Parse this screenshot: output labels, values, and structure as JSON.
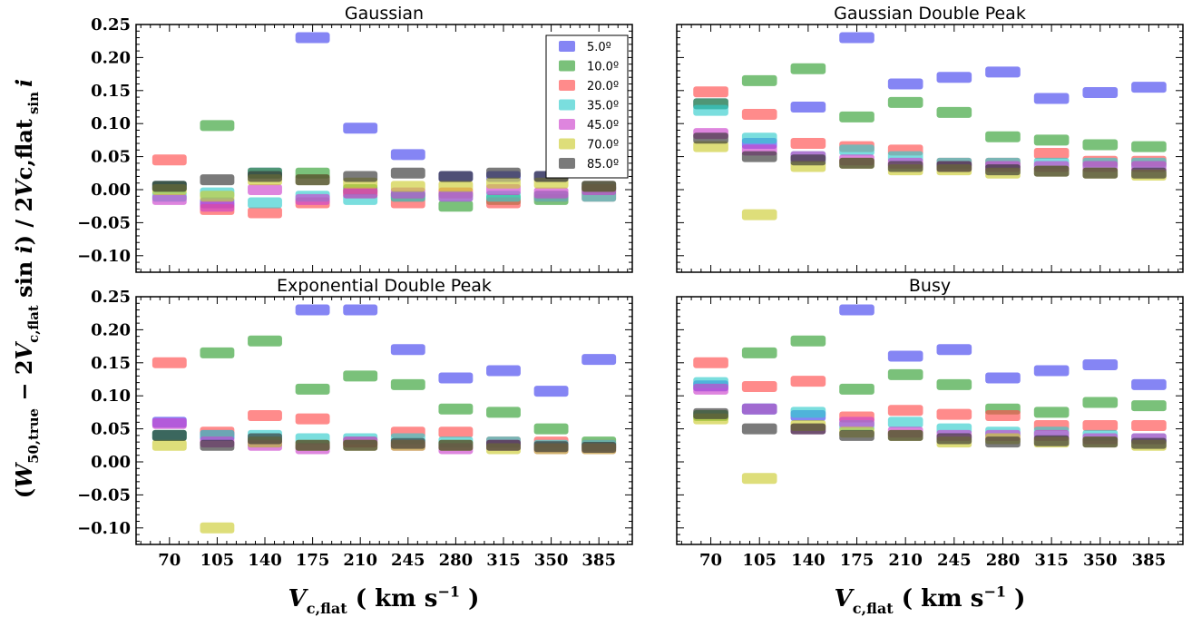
{
  "figure": {
    "ylabel_parts": [
      "(",
      "W",
      "50,true",
      " − 2",
      "V",
      "c,flat",
      " sin ",
      "i",
      ") / 2",
      "V",
      "c,flat",
      " sin ",
      "i"
    ],
    "xlabel_parts": [
      "V",
      "c,flat",
      " ( km s",
      "−1",
      " )"
    ]
  },
  "colors": {
    "5.0º": "#4444ee",
    "10.0º": "#33a033",
    "20.0º": "#ff4d4d",
    "35.0º": "#33cccc",
    "45.0º": "#cc44cc",
    "70.0º": "#cccc33",
    "85.0º": "#333333"
  },
  "chart_data": [
    {
      "type": "scatter",
      "title": "Gaussian",
      "categories": [
        "70",
        "105",
        "140",
        "175",
        "210",
        "245",
        "280",
        "315",
        "350",
        "385"
      ],
      "x": [
        70,
        105,
        140,
        175,
        210,
        245,
        280,
        315,
        350,
        385
      ],
      "ylim": [
        -0.125,
        0.25
      ],
      "yticks": [
        "0.25",
        "0.20",
        "0.15",
        "0.10",
        "0.05",
        "0.00",
        "−0.05",
        "−0.10"
      ],
      "legend": "top-right",
      "series": [
        {
          "name": "5.0º",
          "values": [
            0.005,
            -0.02,
            0.025,
            0.23,
            0.093,
            0.053,
            0.02,
            0.02,
            0.02,
            0.005
          ]
        },
        {
          "name": "10.0º",
          "values": [
            0.005,
            0.097,
            0.025,
            0.025,
            0.0,
            -0.01,
            -0.025,
            -0.015,
            -0.015,
            0.0
          ]
        },
        {
          "name": "20.0º",
          "values": [
            0.045,
            -0.03,
            -0.035,
            -0.02,
            -0.005,
            -0.02,
            -0.005,
            -0.02,
            -0.01,
            -0.01
          ]
        },
        {
          "name": "35.0º",
          "values": [
            -0.01,
            -0.005,
            -0.02,
            -0.01,
            -0.015,
            -0.01,
            -0.01,
            -0.01,
            -0.01,
            -0.01
          ]
        },
        {
          "name": "45.0º",
          "values": [
            -0.015,
            -0.025,
            0.0,
            -0.015,
            -0.005,
            -0.005,
            -0.01,
            0.0,
            -0.005,
            0.0
          ]
        },
        {
          "name": "70.0º",
          "values": [
            0.0,
            -0.01,
            0.015,
            0.015,
            0.01,
            0.005,
            0.005,
            0.01,
            0.01,
            0.005
          ]
        },
        {
          "name": "85.0º",
          "values": [
            0.005,
            0.015,
            0.02,
            0.015,
            0.02,
            0.025,
            0.02,
            0.025,
            0.02,
            0.005
          ]
        }
      ]
    },
    {
      "type": "scatter",
      "title": "Gaussian Double Peak",
      "categories": [
        "70",
        "105",
        "140",
        "175",
        "210",
        "245",
        "280",
        "315",
        "350",
        "385"
      ],
      "x": [
        70,
        105,
        140,
        175,
        210,
        245,
        280,
        315,
        350,
        385
      ],
      "ylim": [
        -0.125,
        0.25
      ],
      "series": [
        {
          "name": "5.0º",
          "values": [
            0.13,
            0.07,
            0.125,
            0.23,
            0.16,
            0.17,
            0.178,
            0.138,
            0.147,
            0.155
          ]
        },
        {
          "name": "10.0º",
          "values": [
            0.13,
            0.165,
            0.183,
            0.11,
            0.132,
            0.117,
            0.08,
            0.075,
            0.068,
            0.065
          ]
        },
        {
          "name": "20.0º",
          "values": [
            0.148,
            0.114,
            0.07,
            0.065,
            0.06,
            0.04,
            0.04,
            0.055,
            0.043,
            0.043
          ]
        },
        {
          "name": "35.0º",
          "values": [
            0.12,
            0.078,
            0.05,
            0.06,
            0.05,
            0.04,
            0.04,
            0.04,
            0.04,
            0.04
          ]
        },
        {
          "name": "45.0º",
          "values": [
            0.085,
            0.06,
            0.05,
            0.045,
            0.04,
            0.035,
            0.035,
            0.035,
            0.035,
            0.035
          ]
        },
        {
          "name": "70.0º",
          "values": [
            0.065,
            -0.038,
            0.035,
            0.04,
            0.03,
            0.03,
            0.025,
            0.028,
            0.025,
            0.022
          ]
        },
        {
          "name": "85.0º",
          "values": [
            0.078,
            0.05,
            0.045,
            0.04,
            0.035,
            0.035,
            0.03,
            0.028,
            0.025,
            0.025
          ]
        }
      ]
    },
    {
      "type": "scatter",
      "title": "Exponential Double Peak",
      "categories": [
        "70",
        "105",
        "140",
        "175",
        "210",
        "245",
        "280",
        "315",
        "350",
        "385"
      ],
      "x": [
        70,
        105,
        140,
        175,
        210,
        245,
        280,
        315,
        350,
        385
      ],
      "ylim": [
        -0.125,
        0.25
      ],
      "yticks": [
        "0.25",
        "0.20",
        "0.15",
        "0.10",
        "0.05",
        "0.00",
        "−0.05",
        "−0.10"
      ],
      "series": [
        {
          "name": "5.0º",
          "values": [
            0.06,
            0.04,
            0.03,
            0.23,
            0.23,
            0.17,
            0.127,
            0.138,
            0.107,
            0.155
          ]
        },
        {
          "name": "10.0º",
          "values": [
            0.04,
            0.165,
            0.183,
            0.11,
            0.13,
            0.117,
            0.08,
            0.075,
            0.05,
            0.03
          ]
        },
        {
          "name": "20.0º",
          "values": [
            0.15,
            0.045,
            0.07,
            0.065,
            0.03,
            0.045,
            0.045,
            0.03,
            0.03,
            0.025
          ]
        },
        {
          "name": "35.0º",
          "values": [
            0.04,
            0.04,
            0.04,
            0.035,
            0.035,
            0.035,
            0.03,
            0.03,
            0.025,
            0.025
          ]
        },
        {
          "name": "45.0º",
          "values": [
            0.058,
            0.03,
            0.025,
            0.02,
            0.03,
            0.025,
            0.02,
            0.025,
            0.02,
            0.02
          ]
        },
        {
          "name": "70.0º",
          "values": [
            0.025,
            -0.1,
            0.03,
            0.025,
            0.025,
            0.025,
            0.025,
            0.02,
            0.02,
            0.02
          ]
        },
        {
          "name": "85.0º",
          "values": [
            0.04,
            0.025,
            0.035,
            0.025,
            0.025,
            0.028,
            0.025,
            0.025,
            0.023,
            0.022
          ]
        }
      ]
    },
    {
      "type": "scatter",
      "title": "Busy",
      "categories": [
        "70",
        "105",
        "140",
        "175",
        "210",
        "245",
        "280",
        "315",
        "350",
        "385"
      ],
      "x": [
        70,
        105,
        140,
        175,
        210,
        245,
        280,
        315,
        350,
        385
      ],
      "ylim": [
        -0.125,
        0.25
      ],
      "series": [
        {
          "name": "5.0º",
          "values": [
            0.115,
            0.08,
            0.07,
            0.23,
            0.16,
            0.17,
            0.127,
            0.138,
            0.147,
            0.117
          ]
        },
        {
          "name": "10.0º",
          "values": [
            0.07,
            0.165,
            0.183,
            0.11,
            0.132,
            0.117,
            0.08,
            0.075,
            0.09,
            0.085
          ]
        },
        {
          "name": "20.0º",
          "values": [
            0.15,
            0.114,
            0.122,
            0.068,
            0.078,
            0.072,
            0.07,
            0.055,
            0.055,
            0.055
          ]
        },
        {
          "name": "35.0º",
          "values": [
            0.12,
            0.08,
            0.075,
            0.055,
            0.06,
            0.05,
            0.045,
            0.045,
            0.04,
            0.035
          ]
        },
        {
          "name": "45.0º",
          "values": [
            0.11,
            0.08,
            0.05,
            0.06,
            0.045,
            0.04,
            0.04,
            0.04,
            0.035,
            0.035
          ]
        },
        {
          "name": "70.0º",
          "values": [
            0.065,
            -0.025,
            0.055,
            0.045,
            0.04,
            0.03,
            0.035,
            0.03,
            0.03,
            0.025
          ]
        },
        {
          "name": "85.0º",
          "values": [
            0.073,
            0.05,
            0.05,
            0.04,
            0.04,
            0.035,
            0.03,
            0.032,
            0.03,
            0.028
          ]
        }
      ]
    }
  ]
}
